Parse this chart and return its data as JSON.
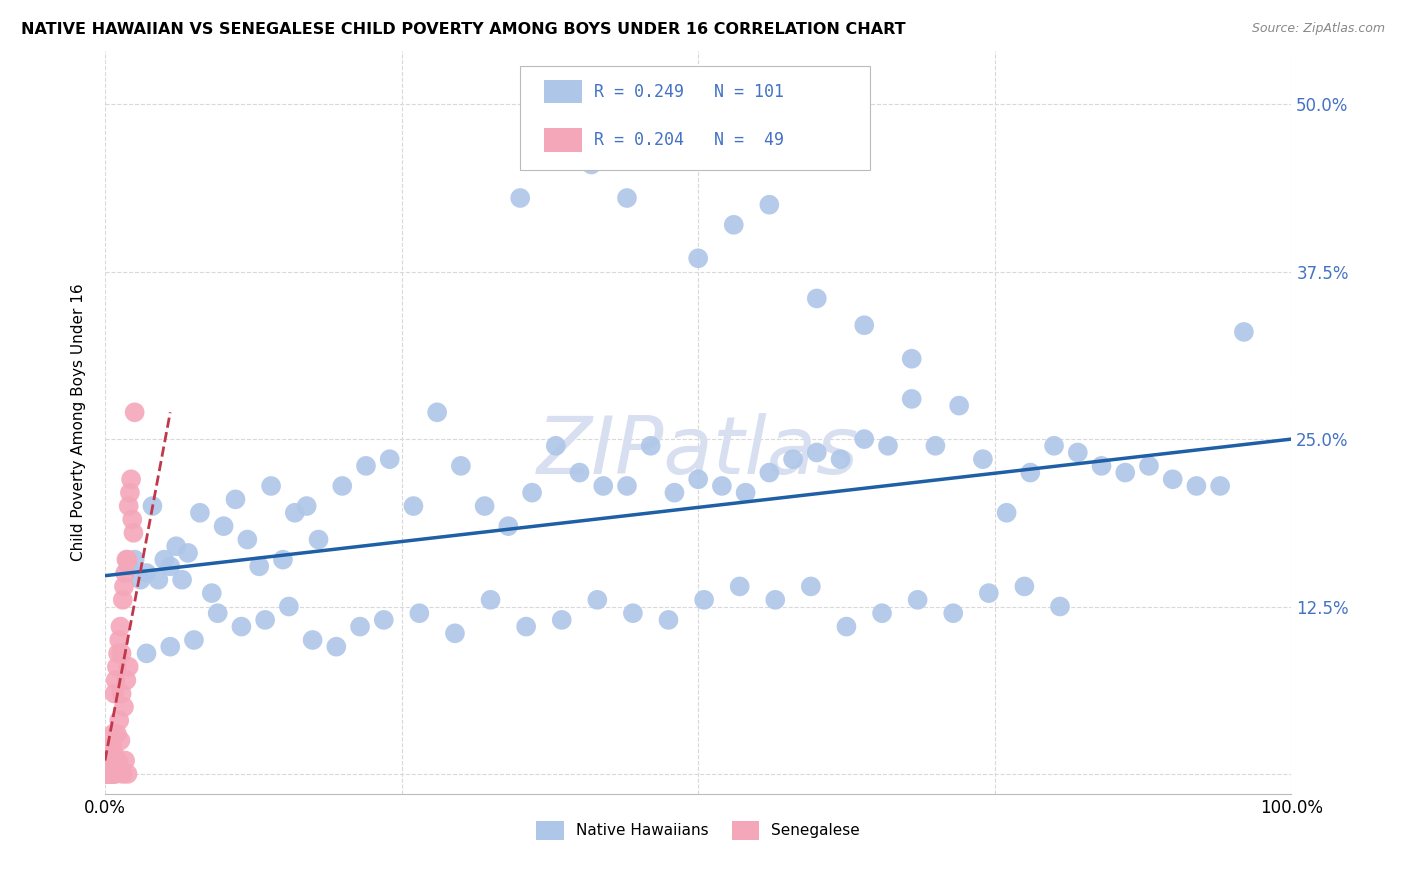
{
  "title": "NATIVE HAWAIIAN VS SENEGALESE CHILD POVERTY AMONG BOYS UNDER 16 CORRELATION CHART",
  "source": "Source: ZipAtlas.com",
  "ylabel": "Child Poverty Among Boys Under 16",
  "xlim": [
    0,
    1.0
  ],
  "ylim": [
    -0.015,
    0.54
  ],
  "ytick_positions": [
    0.0,
    0.125,
    0.25,
    0.375,
    0.5
  ],
  "yticklabels_right": [
    "",
    "12.5%",
    "25.0%",
    "37.5%",
    "50.0%"
  ],
  "legend_entries": [
    {
      "label": "Native Hawaiians",
      "color": "#aec6e8",
      "R": 0.249,
      "N": 101
    },
    {
      "label": "Senegalese",
      "color": "#f4a7b9",
      "R": 0.204,
      "N": 49
    }
  ],
  "blue_tick_color": "#4472c4",
  "blue_scatter_color": "#aec6e8",
  "pink_scatter_color": "#f4a7b9",
  "trend_blue_color": "#1f5fa6",
  "trend_pink_color": "#c0384b",
  "watermark": "ZIPatlas",
  "watermark_color": "#d8dff0",
  "grid_color": "#d9d9d9",
  "blue_x": [
    0.02,
    0.025,
    0.03,
    0.035,
    0.04,
    0.045,
    0.05,
    0.055,
    0.06,
    0.065,
    0.07,
    0.08,
    0.09,
    0.1,
    0.11,
    0.12,
    0.13,
    0.14,
    0.15,
    0.16,
    0.17,
    0.18,
    0.2,
    0.22,
    0.24,
    0.26,
    0.28,
    0.3,
    0.32,
    0.34,
    0.36,
    0.38,
    0.4,
    0.42,
    0.44,
    0.46,
    0.48,
    0.5,
    0.52,
    0.54,
    0.56,
    0.58,
    0.6,
    0.62,
    0.64,
    0.66,
    0.68,
    0.7,
    0.72,
    0.74,
    0.76,
    0.78,
    0.8,
    0.82,
    0.84,
    0.86,
    0.88,
    0.9,
    0.92,
    0.94,
    0.035,
    0.055,
    0.075,
    0.095,
    0.115,
    0.135,
    0.155,
    0.175,
    0.195,
    0.215,
    0.235,
    0.265,
    0.295,
    0.325,
    0.355,
    0.385,
    0.415,
    0.445,
    0.475,
    0.505,
    0.535,
    0.565,
    0.595,
    0.625,
    0.655,
    0.685,
    0.715,
    0.745,
    0.775,
    0.805,
    0.35,
    0.38,
    0.41,
    0.44,
    0.5,
    0.53,
    0.56,
    0.6,
    0.64,
    0.68,
    0.96
  ],
  "blue_y": [
    0.155,
    0.16,
    0.145,
    0.15,
    0.2,
    0.145,
    0.16,
    0.155,
    0.17,
    0.145,
    0.165,
    0.195,
    0.135,
    0.185,
    0.205,
    0.175,
    0.155,
    0.215,
    0.16,
    0.195,
    0.2,
    0.175,
    0.215,
    0.23,
    0.235,
    0.2,
    0.27,
    0.23,
    0.2,
    0.185,
    0.21,
    0.245,
    0.225,
    0.215,
    0.215,
    0.245,
    0.21,
    0.22,
    0.215,
    0.21,
    0.225,
    0.235,
    0.24,
    0.235,
    0.25,
    0.245,
    0.28,
    0.245,
    0.275,
    0.235,
    0.195,
    0.225,
    0.245,
    0.24,
    0.23,
    0.225,
    0.23,
    0.22,
    0.215,
    0.215,
    0.09,
    0.095,
    0.1,
    0.12,
    0.11,
    0.115,
    0.125,
    0.1,
    0.095,
    0.11,
    0.115,
    0.12,
    0.105,
    0.13,
    0.11,
    0.115,
    0.13,
    0.12,
    0.115,
    0.13,
    0.14,
    0.13,
    0.14,
    0.11,
    0.12,
    0.13,
    0.12,
    0.135,
    0.14,
    0.125,
    0.43,
    0.47,
    0.455,
    0.43,
    0.385,
    0.41,
    0.425,
    0.355,
    0.335,
    0.31,
    0.33
  ],
  "pink_x": [
    0.001,
    0.002,
    0.003,
    0.004,
    0.005,
    0.006,
    0.007,
    0.008,
    0.009,
    0.01,
    0.011,
    0.012,
    0.013,
    0.014,
    0.015,
    0.016,
    0.017,
    0.018,
    0.019,
    0.02,
    0.021,
    0.022,
    0.023,
    0.024,
    0.025,
    0.002,
    0.004,
    0.006,
    0.008,
    0.01,
    0.012,
    0.014,
    0.016,
    0.018,
    0.02,
    0.003,
    0.005,
    0.007,
    0.009,
    0.011,
    0.013,
    0.015,
    0.017,
    0.019,
    0.001,
    0.002,
    0.003,
    0.005,
    0.007
  ],
  "pink_y": [
    0.0,
    0.0,
    0.01,
    0.0,
    0.005,
    0.02,
    0.03,
    0.06,
    0.07,
    0.08,
    0.09,
    0.1,
    0.11,
    0.09,
    0.13,
    0.14,
    0.15,
    0.16,
    0.16,
    0.2,
    0.21,
    0.22,
    0.19,
    0.18,
    0.27,
    0.0,
    0.01,
    0.02,
    0.015,
    0.03,
    0.04,
    0.06,
    0.05,
    0.07,
    0.08,
    0.0,
    0.0,
    0.0,
    0.0,
    0.01,
    0.025,
    0.0,
    0.01,
    0.0,
    0.0,
    0.0,
    0.0,
    0.0,
    0.0
  ],
  "blue_trend_y_start": 0.148,
  "blue_trend_y_end": 0.25,
  "pink_trend_x_end": 0.055,
  "pink_trend_y_start": 0.01,
  "pink_trend_y_end": 0.27,
  "figsize": [
    14.06,
    8.92
  ],
  "dpi": 100
}
